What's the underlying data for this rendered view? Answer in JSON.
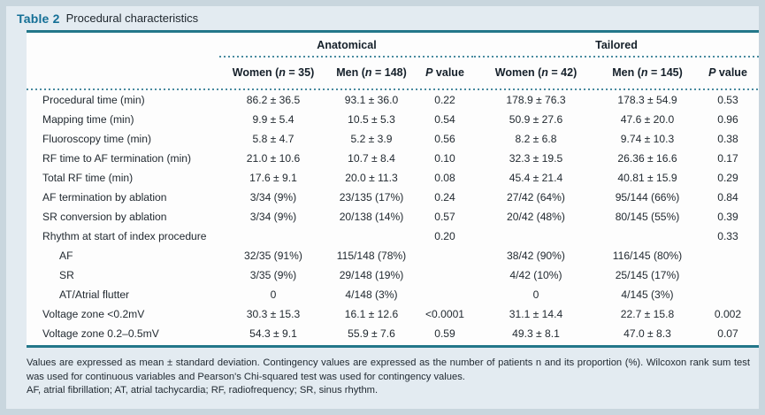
{
  "title": {
    "label": "Table 2",
    "text": "Procedural characteristics"
  },
  "groups": {
    "anatomical": "Anatomical",
    "tailored": "Tailored"
  },
  "columns": {
    "a_women": {
      "pre": "Women (",
      "it": "n",
      "post": " = 35)"
    },
    "a_men": {
      "pre": "Men (",
      "it": "n",
      "post": " = 148)"
    },
    "a_p": {
      "pre": "",
      "it": "P",
      "post": " value"
    },
    "t_women": {
      "pre": "Women (",
      "it": "n",
      "post": " = 42)"
    },
    "t_men": {
      "pre": "Men (",
      "it": "n",
      "post": " = 145)"
    },
    "t_p": {
      "pre": "",
      "it": "P",
      "post": " value"
    }
  },
  "rows": [
    {
      "label": "Procedural time (min)",
      "indent": false,
      "values": [
        "86.2 ± 36.5",
        "93.1 ± 36.0",
        "0.22",
        "178.9 ± 76.3",
        "178.3 ± 54.9",
        "0.53"
      ]
    },
    {
      "label": "Mapping time (min)",
      "indent": false,
      "values": [
        "9.9 ± 5.4",
        "10.5 ± 5.3",
        "0.54",
        "50.9 ± 27.6",
        "47.6 ± 20.0",
        "0.96"
      ]
    },
    {
      "label": "Fluoroscopy time (min)",
      "indent": false,
      "values": [
        "5.8 ± 4.7",
        "5.2 ± 3.9",
        "0.56",
        "8.2 ± 6.8",
        "9.74 ± 10.3",
        "0.38"
      ]
    },
    {
      "label": "RF time to AF termination (min)",
      "indent": false,
      "values": [
        "21.0 ± 10.6",
        "10.7 ± 8.4",
        "0.10",
        "32.3 ± 19.5",
        "26.36 ± 16.6",
        "0.17"
      ]
    },
    {
      "label": "Total RF time (min)",
      "indent": false,
      "values": [
        "17.6 ± 9.1",
        "20.0 ± 11.3",
        "0.08",
        "45.4 ± 21.4",
        "40.81 ± 15.9",
        "0.29"
      ]
    },
    {
      "label": "AF termination by ablation",
      "indent": false,
      "values": [
        "3/34 (9%)",
        "23/135 (17%)",
        "0.24",
        "27/42 (64%)",
        "95/144 (66%)",
        "0.84"
      ]
    },
    {
      "label": "SR conversion by ablation",
      "indent": false,
      "values": [
        "3/34 (9%)",
        "20/138 (14%)",
        "0.57",
        "20/42 (48%)",
        "80/145 (55%)",
        "0.39"
      ]
    },
    {
      "label": "Rhythm at start of index procedure",
      "indent": false,
      "values": [
        "",
        "",
        "0.20",
        "",
        "",
        "0.33"
      ]
    },
    {
      "label": "AF",
      "indent": true,
      "values": [
        "32/35 (91%)",
        "115/148 (78%)",
        "",
        "38/42 (90%)",
        "116/145 (80%)",
        ""
      ]
    },
    {
      "label": "SR",
      "indent": true,
      "values": [
        "3/35 (9%)",
        "29/148 (19%)",
        "",
        "4/42 (10%)",
        "25/145 (17%)",
        ""
      ]
    },
    {
      "label": "AT/Atrial flutter",
      "indent": true,
      "values": [
        "0",
        "4/148 (3%)",
        "",
        "0",
        "4/145 (3%)",
        ""
      ]
    },
    {
      "label": "Voltage zone <0.2mV",
      "indent": false,
      "values": [
        "30.3 ± 15.3",
        "16.1 ± 12.6",
        "<0.0001",
        "31.1 ± 14.4",
        "22.7 ± 15.8",
        "0.002"
      ]
    },
    {
      "label": "Voltage zone 0.2–0.5mV",
      "indent": false,
      "values": [
        "54.3 ± 9.1",
        "55.9 ± 7.6",
        "0.59",
        "49.3 ± 8.1",
        "47.0 ± 8.3",
        "0.07"
      ]
    }
  ],
  "footnotes": {
    "line1": "Values are expressed as mean ± standard deviation. Contingency values are expressed as the number of patients n and its proportion (%). Wilcoxon rank sum test was used for continuous variables and Pearson's Chi-squared test was used for contingency values.",
    "line2": "AF, atrial fibrillation; AT, atrial tachycardia; RF, radiofrequency; SR, sinus rhythm."
  },
  "colors": {
    "teal_rule": "#23778a",
    "teal_dotted": "#4a8ba0",
    "title_teal": "#146f96",
    "text": "#222a31",
    "bg_outer": "#c9d6de",
    "bg_panel": "#e3ebf1",
    "bg_table": "#fdfdfd"
  }
}
